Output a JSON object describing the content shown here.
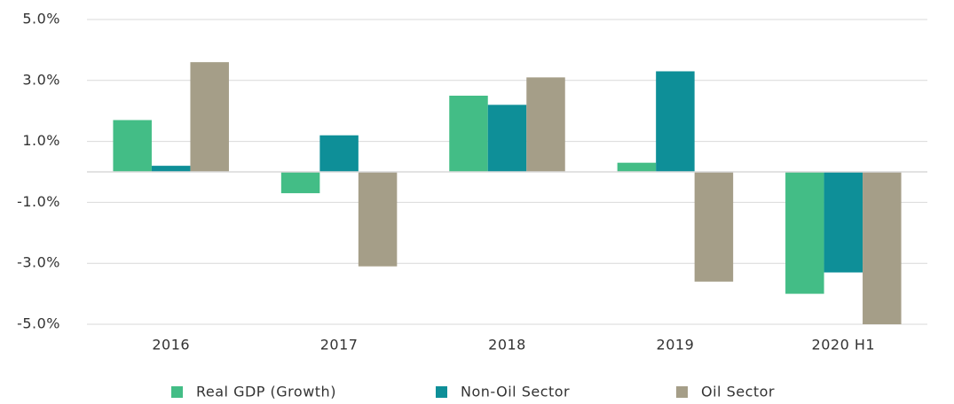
{
  "chart_data": {
    "type": "bar",
    "categories": [
      "2016",
      "2017",
      "2018",
      "2019",
      "2020 H1"
    ],
    "series": [
      {
        "name": "Real GDP (Growth)",
        "color": "#43bd86",
        "values": [
          1.7,
          -0.7,
          2.5,
          0.3,
          -4.0
        ]
      },
      {
        "name": "Non-Oil Sector",
        "color": "#0e8f98",
        "values": [
          0.2,
          1.2,
          2.2,
          3.3,
          -3.3
        ]
      },
      {
        "name": "Oil Sector",
        "color": "#a59e88",
        "values": [
          3.6,
          -3.1,
          3.1,
          -3.6,
          -5.0
        ]
      }
    ],
    "ylim": [
      -5,
      5
    ],
    "yticks": [
      {
        "value": -5,
        "label": "-5.0%"
      },
      {
        "value": -3,
        "label": "-3.0%"
      },
      {
        "value": -1,
        "label": "-1.0%"
      },
      {
        "value": 1,
        "label": "1.0%"
      },
      {
        "value": 3,
        "label": "3.0%"
      },
      {
        "value": 5,
        "label": "5.0%"
      }
    ],
    "grid": true,
    "legend": "bottom"
  }
}
